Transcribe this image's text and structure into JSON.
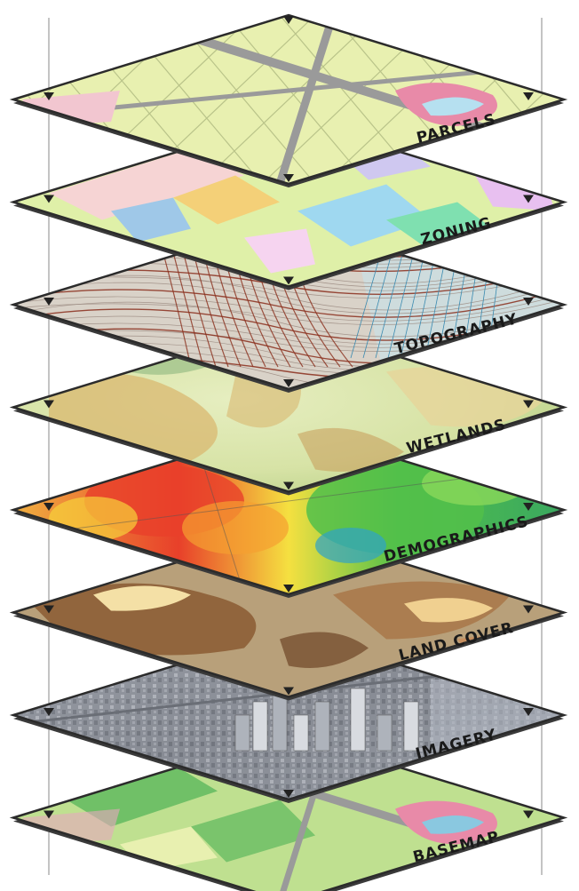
{
  "layers": [
    {
      "label": "PARCELS",
      "theme": "parcels"
    },
    {
      "label": "ZONING",
      "theme": "zoning"
    },
    {
      "label": "TOPOGRAPHY",
      "theme": "topography"
    },
    {
      "label": "WETLANDS",
      "theme": "wetlands"
    },
    {
      "label": "DEMOGRAPHICS",
      "theme": "demographics"
    },
    {
      "label": "LAND COVER",
      "theme": "landcover"
    },
    {
      "label": "IMAGERY",
      "theme": "imagery"
    },
    {
      "label": "BASEMAP",
      "theme": "basemap"
    }
  ],
  "colors": {
    "frame": "#2b2b2b",
    "guide_line": "#8a8a8a",
    "parcels_base": "#e8f0b0",
    "parcels_road": "#9a9a9a",
    "parcels_accent": "#e88aa8",
    "zoning_base": "#dff0a8",
    "topo_base": "#d9d2c8",
    "topo_line": "#8a2e1c",
    "wetlands_base": "#cfe0a0",
    "wetlands_sand": "#d9b870",
    "demo_red": "#e8402a",
    "demo_orange": "#f5a030",
    "demo_green": "#52c04a",
    "landcover_tan": "#b8a07a",
    "landcover_brown": "#8a5a32",
    "imagery_base": "#8a8e96",
    "basemap_base": "#bfe090",
    "basemap_green": "#5cb85c"
  }
}
